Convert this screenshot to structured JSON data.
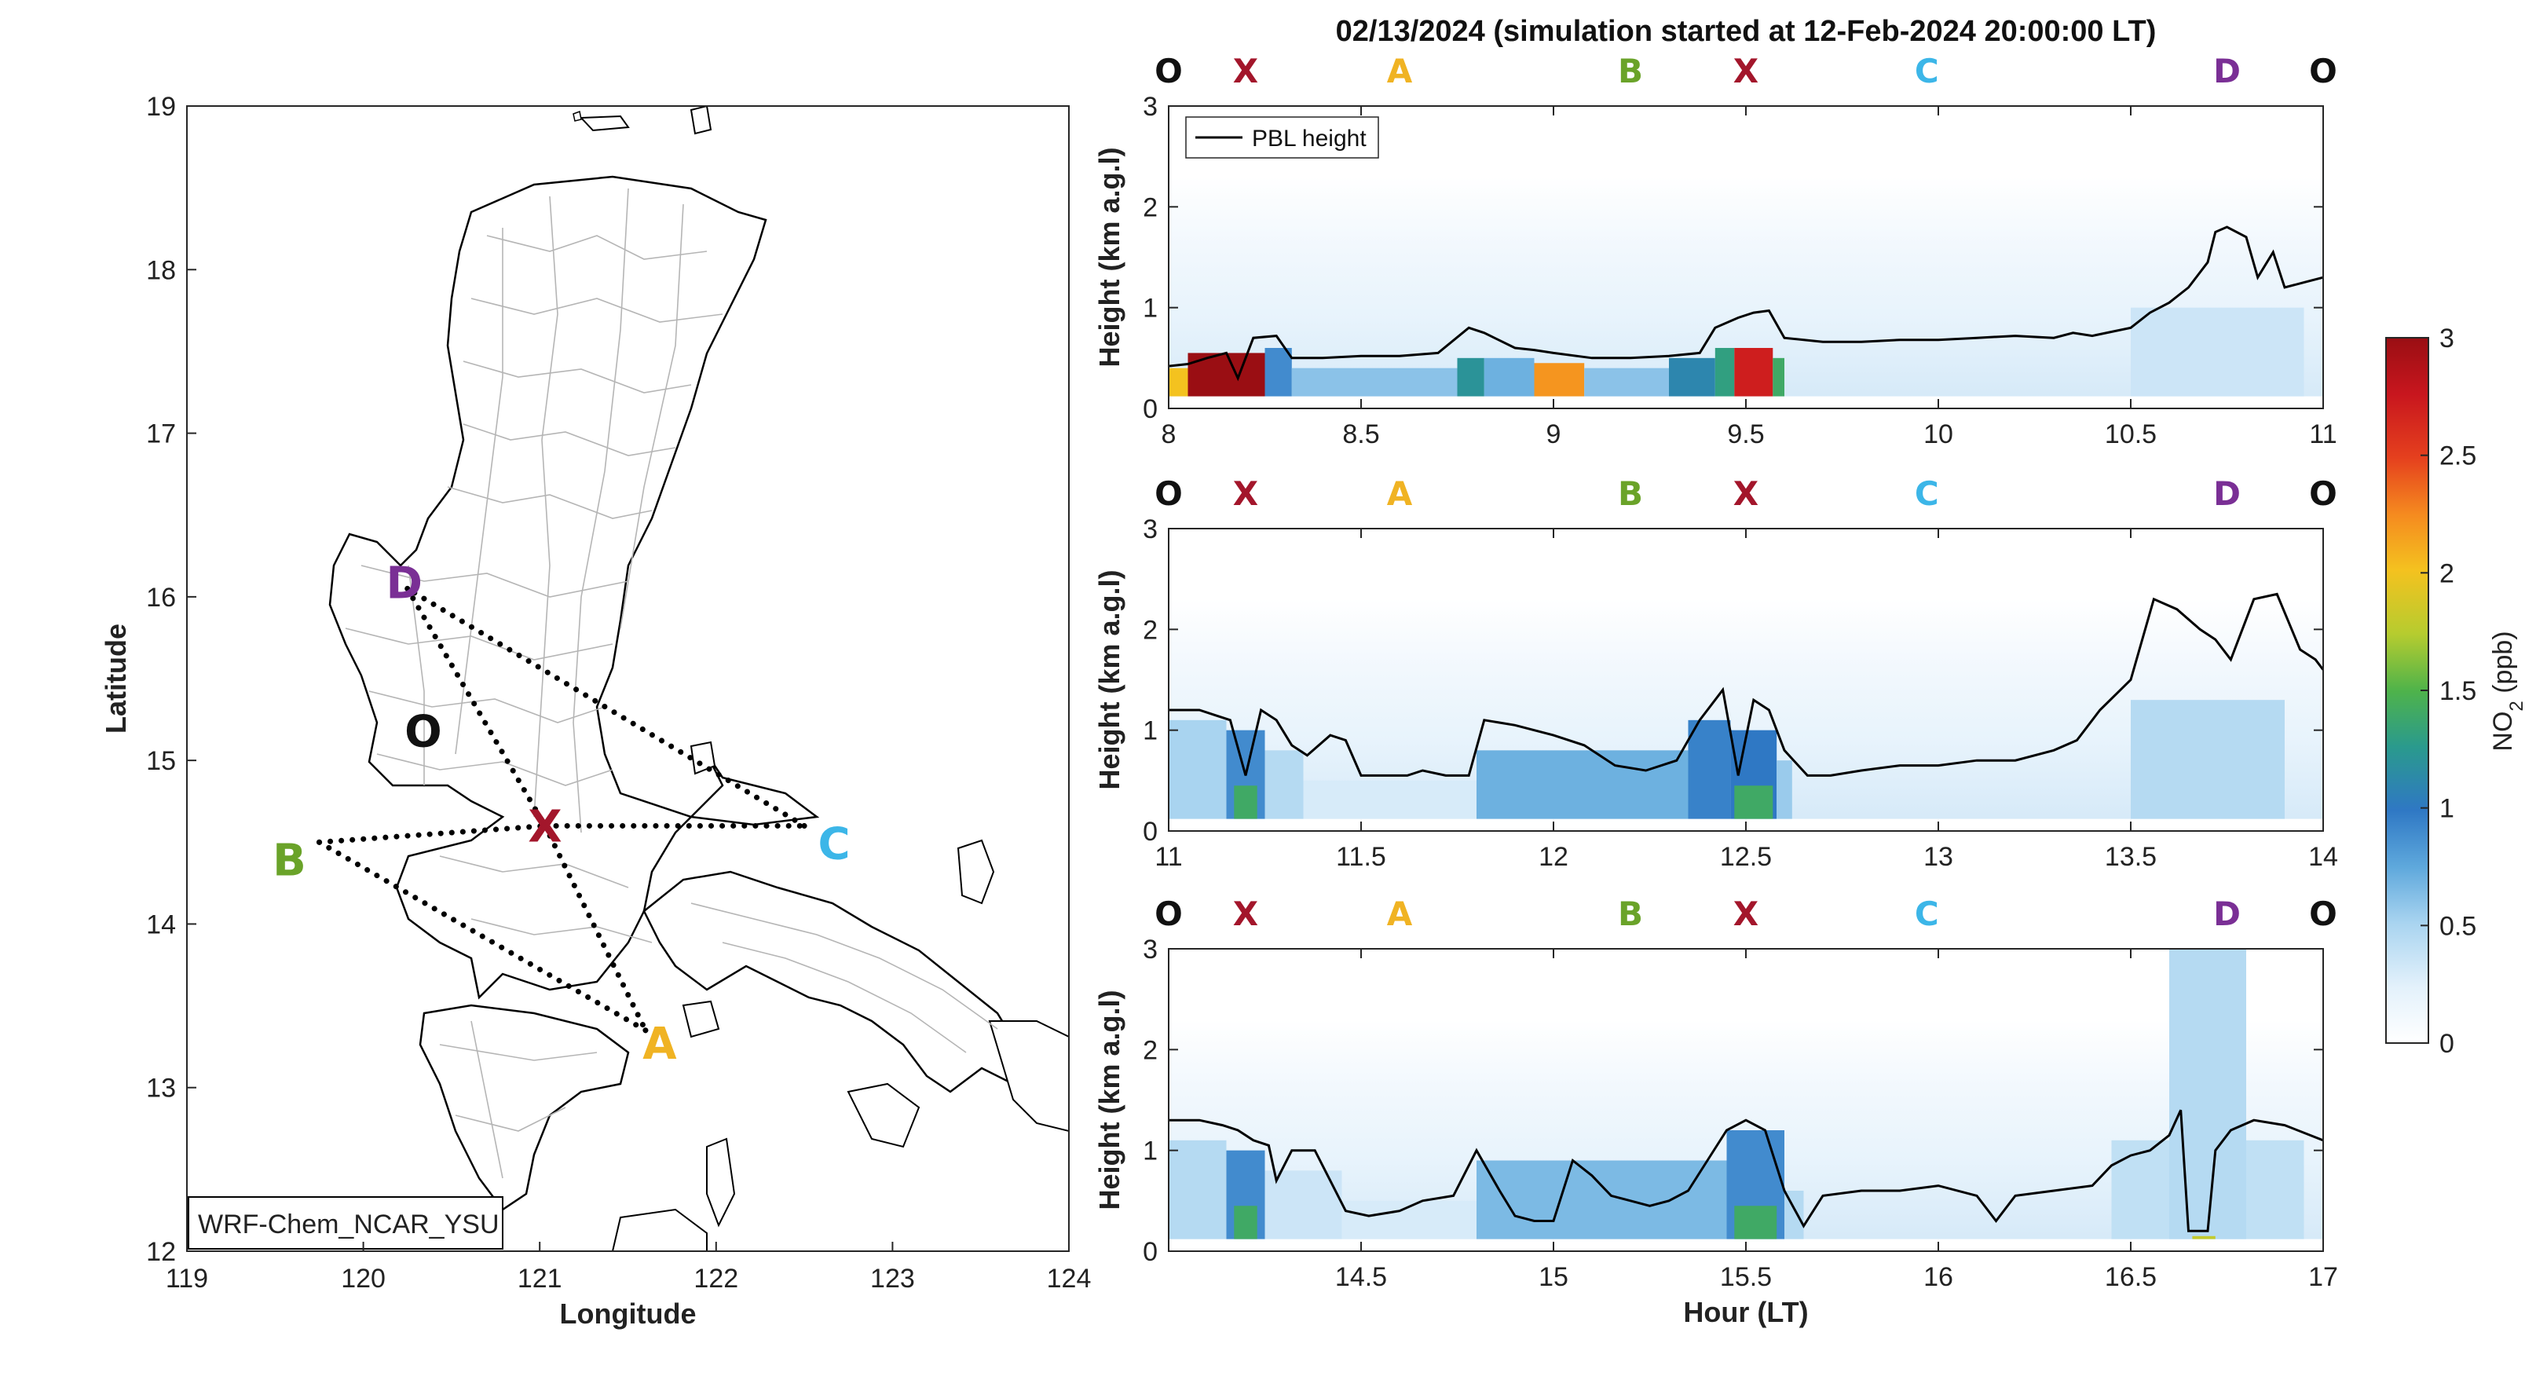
{
  "title": "02/13/2024 (simulation started at 12-Feb-2024 20:00:00 LT)",
  "colors": {
    "O": "#111111",
    "X": "#a3162b",
    "A": "#f0b323",
    "B": "#6aa329",
    "C": "#3cb6e8",
    "D": "#7a2f95",
    "pbl": "#000000",
    "route": "#000000",
    "coast": "#000000",
    "admin": "#b5b5b5"
  },
  "map": {
    "xlabel": "Longitude",
    "ylabel": "Latitude",
    "xlim": [
      119,
      124
    ],
    "ylim": [
      12,
      19
    ],
    "xticks": [
      "119",
      "120",
      "121",
      "122",
      "123",
      "124"
    ],
    "yticks": [
      "12",
      "13",
      "14",
      "15",
      "16",
      "17",
      "18",
      "19"
    ],
    "model_label": "WRF-Chem_NCAR_YSU",
    "sites": [
      {
        "id": "O",
        "lon": 120.34,
        "lat": 15.18,
        "label": "O"
      },
      {
        "id": "X",
        "lon": 121.03,
        "lat": 14.6,
        "label": "X"
      },
      {
        "id": "A",
        "lon": 121.6,
        "lat": 13.35,
        "label": "A"
      },
      {
        "id": "B",
        "lon": 119.75,
        "lat": 14.5,
        "label": "B"
      },
      {
        "id": "C",
        "lon": 122.5,
        "lat": 14.6,
        "label": "C"
      },
      {
        "id": "D",
        "lon": 120.25,
        "lat": 16.05,
        "label": "D"
      }
    ],
    "route": [
      "D",
      "X",
      "A",
      "B",
      "X",
      "C",
      "D"
    ]
  },
  "chart_data": [
    {
      "type": "heatmap",
      "xlim": [
        8,
        11
      ],
      "ylim": [
        0,
        3
      ],
      "xticks": [
        "8",
        "8.5",
        "9",
        "9.5",
        "10",
        "10.5",
        "11"
      ],
      "yticks": [
        "0",
        "1",
        "2",
        "3"
      ],
      "ylabel": "Height (km a.g.l)",
      "xlabel": "",
      "legend": {
        "label": "PBL height",
        "placement": "top-left"
      },
      "site_labels": [
        {
          "t": 8.0,
          "id": "O"
        },
        {
          "t": 8.2,
          "id": "X"
        },
        {
          "t": 8.6,
          "id": "A"
        },
        {
          "t": 9.2,
          "id": "B"
        },
        {
          "t": 9.5,
          "id": "X"
        },
        {
          "t": 9.97,
          "id": "C"
        },
        {
          "t": 10.75,
          "id": "D"
        },
        {
          "t": 11.0,
          "id": "O"
        }
      ],
      "pbl": {
        "x": [
          8.0,
          8.05,
          8.1,
          8.15,
          8.18,
          8.22,
          8.28,
          8.32,
          8.4,
          8.5,
          8.6,
          8.7,
          8.78,
          8.82,
          8.9,
          8.95,
          9.0,
          9.1,
          9.2,
          9.3,
          9.38,
          9.42,
          9.48,
          9.52,
          9.56,
          9.6,
          9.7,
          9.8,
          9.9,
          10.0,
          10.1,
          10.2,
          10.3,
          10.35,
          10.4,
          10.5,
          10.55,
          10.6,
          10.65,
          10.7,
          10.72,
          10.75,
          10.8,
          10.83,
          10.87,
          10.9,
          10.95,
          11.0
        ],
        "y": [
          0.42,
          0.44,
          0.5,
          0.55,
          0.3,
          0.7,
          0.72,
          0.5,
          0.5,
          0.52,
          0.52,
          0.55,
          0.8,
          0.75,
          0.6,
          0.58,
          0.55,
          0.5,
          0.5,
          0.52,
          0.55,
          0.8,
          0.9,
          0.95,
          0.97,
          0.7,
          0.66,
          0.66,
          0.68,
          0.68,
          0.7,
          0.72,
          0.7,
          0.75,
          0.72,
          0.8,
          0.95,
          1.05,
          1.2,
          1.45,
          1.75,
          1.8,
          1.7,
          1.3,
          1.55,
          1.2,
          1.25,
          1.3
        ]
      },
      "no2_bands": [
        {
          "x0": 8.0,
          "x1": 8.05,
          "top": 0.4,
          "value": 2.0
        },
        {
          "x0": 8.05,
          "x1": 8.25,
          "top": 0.55,
          "value": 3.0
        },
        {
          "x0": 8.25,
          "x1": 8.32,
          "top": 0.6,
          "value": 0.9
        },
        {
          "x0": 8.32,
          "x1": 8.75,
          "top": 0.4,
          "value": 0.6
        },
        {
          "x0": 8.75,
          "x1": 8.82,
          "top": 0.5,
          "value": 1.2
        },
        {
          "x0": 8.82,
          "x1": 8.95,
          "top": 0.5,
          "value": 0.7
        },
        {
          "x0": 8.95,
          "x1": 9.08,
          "top": 0.45,
          "value": 2.2
        },
        {
          "x0": 9.08,
          "x1": 9.3,
          "top": 0.4,
          "value": 0.6
        },
        {
          "x0": 9.3,
          "x1": 9.42,
          "top": 0.5,
          "value": 1.1
        },
        {
          "x0": 9.42,
          "x1": 9.47,
          "top": 0.6,
          "value": 1.3
        },
        {
          "x0": 9.47,
          "x1": 9.57,
          "top": 0.6,
          "value": 2.7
        },
        {
          "x0": 9.57,
          "x1": 9.6,
          "top": 0.5,
          "value": 1.4
        },
        {
          "x0": 10.5,
          "x1": 10.95,
          "top": 1.0,
          "value": 0.35
        }
      ]
    },
    {
      "type": "heatmap",
      "xlim": [
        11,
        14
      ],
      "ylim": [
        0,
        3
      ],
      "xticks": [
        "11",
        "11.5",
        "12",
        "12.5",
        "13",
        "13.5",
        "14"
      ],
      "yticks": [
        "0",
        "1",
        "2",
        "3"
      ],
      "ylabel": "Height (km a.g.l)",
      "xlabel": "",
      "site_labels": [
        {
          "t": 11.0,
          "id": "O"
        },
        {
          "t": 11.2,
          "id": "X"
        },
        {
          "t": 11.6,
          "id": "A"
        },
        {
          "t": 12.2,
          "id": "B"
        },
        {
          "t": 12.5,
          "id": "X"
        },
        {
          "t": 12.97,
          "id": "C"
        },
        {
          "t": 13.75,
          "id": "D"
        },
        {
          "t": 14.0,
          "id": "O"
        }
      ],
      "pbl": {
        "x": [
          11.0,
          11.08,
          11.12,
          11.16,
          11.2,
          11.24,
          11.28,
          11.32,
          11.36,
          11.42,
          11.46,
          11.5,
          11.58,
          11.62,
          11.66,
          11.72,
          11.78,
          11.82,
          11.9,
          12.0,
          12.08,
          12.16,
          12.24,
          12.32,
          12.38,
          12.44,
          12.48,
          12.52,
          12.56,
          12.6,
          12.66,
          12.72,
          12.8,
          12.9,
          13.0,
          13.1,
          13.2,
          13.3,
          13.36,
          13.42,
          13.5,
          13.56,
          13.62,
          13.68,
          13.72,
          13.76,
          13.82,
          13.88,
          13.94,
          13.98,
          14.0
        ],
        "y": [
          1.2,
          1.2,
          1.15,
          1.1,
          0.55,
          1.2,
          1.1,
          0.85,
          0.75,
          0.95,
          0.9,
          0.55,
          0.55,
          0.55,
          0.6,
          0.55,
          0.55,
          1.1,
          1.05,
          0.95,
          0.85,
          0.65,
          0.6,
          0.7,
          1.1,
          1.4,
          0.55,
          1.3,
          1.2,
          0.8,
          0.55,
          0.55,
          0.6,
          0.65,
          0.65,
          0.7,
          0.7,
          0.8,
          0.9,
          1.2,
          1.5,
          2.3,
          2.2,
          2.0,
          1.9,
          1.7,
          2.3,
          2.35,
          1.8,
          1.7,
          1.6
        ]
      },
      "no2_bands": [
        {
          "x0": 11.0,
          "x1": 11.15,
          "top": 1.1,
          "value": 0.5
        },
        {
          "x0": 11.15,
          "x1": 11.25,
          "top": 1.0,
          "value": 0.9
        },
        {
          "x0": 11.17,
          "x1": 11.23,
          "top": 0.45,
          "value": 1.4
        },
        {
          "x0": 11.25,
          "x1": 11.35,
          "top": 0.8,
          "value": 0.45
        },
        {
          "x0": 11.35,
          "x1": 11.8,
          "top": 0.5,
          "value": 0.3
        },
        {
          "x0": 11.8,
          "x1": 12.35,
          "top": 0.8,
          "value": 0.7
        },
        {
          "x0": 12.35,
          "x1": 12.46,
          "top": 1.1,
          "value": 0.95
        },
        {
          "x0": 12.46,
          "x1": 12.58,
          "top": 1.0,
          "value": 1.0
        },
        {
          "x0": 12.47,
          "x1": 12.57,
          "top": 0.45,
          "value": 1.4
        },
        {
          "x0": 12.58,
          "x1": 12.62,
          "top": 0.7,
          "value": 0.55
        },
        {
          "x0": 13.5,
          "x1": 13.9,
          "top": 1.3,
          "value": 0.45
        }
      ]
    },
    {
      "type": "heatmap",
      "xlim": [
        14,
        17
      ],
      "ylim": [
        0,
        3
      ],
      "xticks": [
        "14.5",
        "15",
        "15.5",
        "16",
        "16.5",
        "17"
      ],
      "yticks": [
        "0",
        "1",
        "2",
        "3"
      ],
      "ylabel": "Height (km a.g.l)",
      "xlabel": "Hour (LT)",
      "site_labels": [
        {
          "t": 14.0,
          "id": "O"
        },
        {
          "t": 14.2,
          "id": "X"
        },
        {
          "t": 14.6,
          "id": "A"
        },
        {
          "t": 15.2,
          "id": "B"
        },
        {
          "t": 15.5,
          "id": "X"
        },
        {
          "t": 15.97,
          "id": "C"
        },
        {
          "t": 16.75,
          "id": "D"
        },
        {
          "t": 17.0,
          "id": "O"
        }
      ],
      "pbl": {
        "x": [
          14.0,
          14.08,
          14.14,
          14.18,
          14.22,
          14.26,
          14.28,
          14.32,
          14.38,
          14.42,
          14.46,
          14.52,
          14.6,
          14.66,
          14.74,
          14.8,
          14.86,
          14.9,
          14.95,
          15.0,
          15.05,
          15.1,
          15.15,
          15.2,
          15.25,
          15.3,
          15.35,
          15.4,
          15.45,
          15.5,
          15.55,
          15.6,
          15.65,
          15.7,
          15.8,
          15.9,
          16.0,
          16.1,
          16.15,
          16.2,
          16.3,
          16.4,
          16.45,
          16.5,
          16.55,
          16.6,
          16.63,
          16.65,
          16.7,
          16.72,
          16.76,
          16.82,
          16.9,
          17.0
        ],
        "y": [
          1.3,
          1.3,
          1.25,
          1.2,
          1.1,
          1.05,
          0.7,
          1.0,
          1.0,
          0.7,
          0.4,
          0.35,
          0.4,
          0.5,
          0.55,
          1.0,
          0.6,
          0.35,
          0.3,
          0.3,
          0.9,
          0.75,
          0.55,
          0.5,
          0.45,
          0.5,
          0.6,
          0.9,
          1.2,
          1.3,
          1.2,
          0.6,
          0.25,
          0.55,
          0.6,
          0.6,
          0.65,
          0.55,
          0.3,
          0.55,
          0.6,
          0.65,
          0.85,
          0.95,
          1.0,
          1.15,
          1.4,
          0.2,
          0.2,
          1.0,
          1.2,
          1.3,
          1.25,
          1.1
        ]
      },
      "no2_bands": [
        {
          "x0": 14.0,
          "x1": 14.15,
          "top": 1.1,
          "value": 0.45
        },
        {
          "x0": 14.15,
          "x1": 14.25,
          "top": 1.0,
          "value": 0.9
        },
        {
          "x0": 14.17,
          "x1": 14.23,
          "top": 0.45,
          "value": 1.4
        },
        {
          "x0": 14.25,
          "x1": 14.45,
          "top": 0.8,
          "value": 0.35
        },
        {
          "x0": 14.45,
          "x1": 14.8,
          "top": 0.5,
          "value": 0.3
        },
        {
          "x0": 14.8,
          "x1": 15.45,
          "top": 0.9,
          "value": 0.65
        },
        {
          "x0": 15.45,
          "x1": 15.6,
          "top": 1.2,
          "value": 0.9
        },
        {
          "x0": 15.47,
          "x1": 15.58,
          "top": 0.45,
          "value": 1.4
        },
        {
          "x0": 15.6,
          "x1": 15.65,
          "top": 0.6,
          "value": 0.45
        },
        {
          "x0": 16.45,
          "x1": 16.95,
          "top": 1.1,
          "value": 0.4
        },
        {
          "x0": 16.6,
          "x1": 16.8,
          "top": 3.0,
          "value": 0.45
        },
        {
          "x0": 16.66,
          "x1": 16.72,
          "top": 0.15,
          "value": 1.8
        }
      ]
    }
  ],
  "colorbar": {
    "label_main": "NO",
    "label_sub": "2",
    "label_unit": " (ppb)",
    "min": 0,
    "max": 3,
    "ticks": [
      "0",
      "0.5",
      "1",
      "1.5",
      "2",
      "2.5",
      "3"
    ]
  }
}
